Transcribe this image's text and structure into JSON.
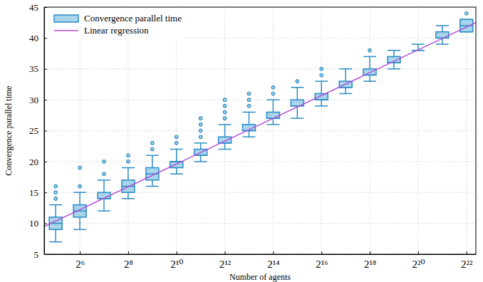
{
  "chart_data": {
    "type": "box",
    "x_label": "Number of agents",
    "y_label": "Convergence parallel time",
    "log": "x",
    "grid": true,
    "legend": "upper left",
    "xlim": [
      23,
      5500000
    ],
    "ylim": [
      5,
      45
    ],
    "xticks": [
      {
        "value": 64,
        "label": "2⁶"
      },
      {
        "value": 256,
        "label": "2⁸"
      },
      {
        "value": 1024,
        "label": "2¹⁰"
      },
      {
        "value": 4096,
        "label": "2¹²"
      },
      {
        "value": 16384,
        "label": "2¹⁴"
      },
      {
        "value": 65536,
        "label": "2¹⁶"
      },
      {
        "value": 262144,
        "label": "2¹⁸"
      },
      {
        "value": 1048576,
        "label": "2²⁰"
      },
      {
        "value": 4194304,
        "label": "2²²"
      }
    ],
    "yticks": [
      5,
      10,
      15,
      20,
      25,
      30,
      35,
      40,
      45
    ],
    "series": [
      {
        "name": "Convergence parallel time",
        "type": "box",
        "color": "#2b8cc4",
        "x": [
          32,
          64,
          128,
          256,
          512,
          1024,
          2048,
          4096,
          8192,
          16384,
          32768,
          65536,
          131072,
          262144,
          524288,
          1048576,
          2097152,
          4194304
        ],
        "whislo": [
          7,
          9,
          12,
          14,
          16,
          18,
          20,
          22,
          24,
          26,
          27,
          29,
          31,
          33,
          35,
          38,
          39,
          41
        ],
        "q1": [
          9,
          11,
          14,
          15,
          17,
          19,
          21,
          23,
          25,
          27,
          29,
          30,
          32,
          34,
          36,
          38,
          40,
          41
        ],
        "median": [
          10,
          12,
          14,
          16,
          18,
          20,
          21,
          23,
          25,
          27,
          29,
          30,
          32,
          34,
          36,
          38,
          40,
          42
        ],
        "q3": [
          11,
          13,
          15,
          17,
          19,
          20,
          22,
          24,
          26,
          28,
          30,
          31,
          33,
          35,
          37,
          38,
          41,
          43
        ],
        "whishi": [
          13,
          15,
          17,
          19,
          21,
          22,
          23,
          26,
          28,
          30,
          32,
          33,
          35,
          37,
          38,
          39,
          42,
          43
        ],
        "fliers": [
          [
            14,
            15,
            16
          ],
          [
            16,
            19
          ],
          [
            18,
            20
          ],
          [
            20,
            21
          ],
          [
            22,
            23
          ],
          [
            23,
            24
          ],
          [
            24,
            25,
            26,
            27
          ],
          [
            27,
            28,
            29,
            30
          ],
          [
            29,
            30,
            31
          ],
          [
            31,
            32
          ],
          [
            33
          ],
          [
            34,
            35
          ],
          [],
          [
            38
          ],
          [],
          [],
          [],
          [
            44
          ]
        ]
      },
      {
        "name": "Linear regression",
        "type": "line",
        "color": "#b14fd6",
        "x": [
          23,
          5500000
        ],
        "values": [
          9.5,
          42.5
        ]
      }
    ]
  }
}
